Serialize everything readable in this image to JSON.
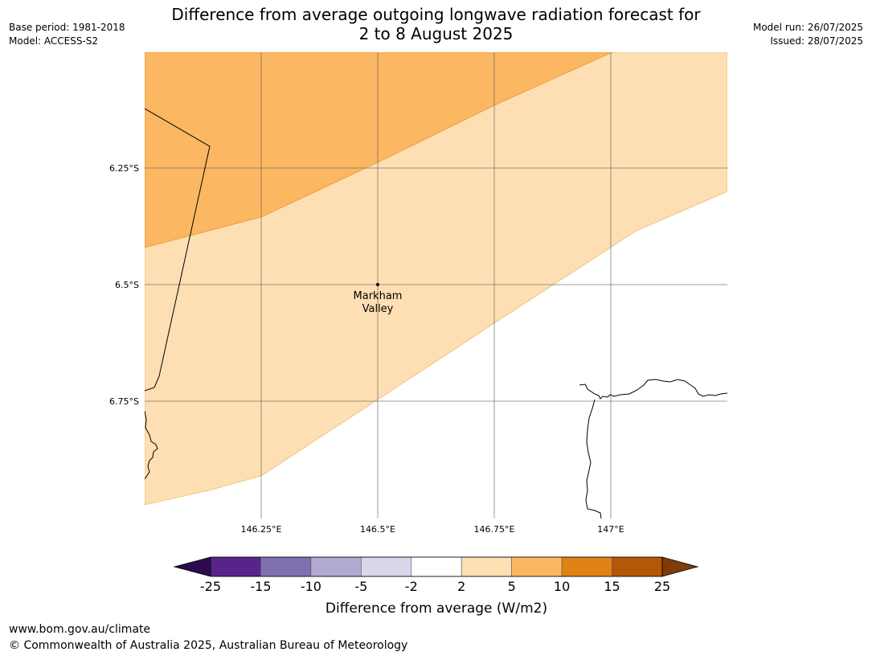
{
  "title_line1": "Difference from average outgoing longwave radiation forecast for",
  "title_line2": "2 to 8 August 2025",
  "base_period": "Base period: 1981-2018",
  "model": "Model: ACCESS-S2",
  "model_run": "Model run: 26/07/2025",
  "issued": "Issued: 28/07/2025",
  "place_label_line1": "Markham",
  "place_label_line2": "Valley",
  "lat_labels": [
    "6.25°S",
    "6.5°S",
    "6.75°S"
  ],
  "lon_labels": [
    "146.25°E",
    "146.5°E",
    "146.75°E",
    "147°E"
  ],
  "colorbar": {
    "title": "Difference from average (W/m2)",
    "tick_labels": [
      "-25",
      "-15",
      "-10",
      "-5",
      "-2",
      "2",
      "5",
      "10",
      "15",
      "25"
    ],
    "colors": [
      "#58238a",
      "#8170b0",
      "#b2a9d3",
      "#d9d8ea",
      "#ffffff",
      "#fddfb3",
      "#fbb762",
      "#e08214",
      "#b35806"
    ],
    "low_extend_color": "#2d0a4e",
    "high_extend_color": "#7f3b08"
  },
  "footer_url": "www.bom.gov.au/climate",
  "footer_copyright": "© Commonwealth of Australia 2025, Australian Bureau of Meteorology"
}
